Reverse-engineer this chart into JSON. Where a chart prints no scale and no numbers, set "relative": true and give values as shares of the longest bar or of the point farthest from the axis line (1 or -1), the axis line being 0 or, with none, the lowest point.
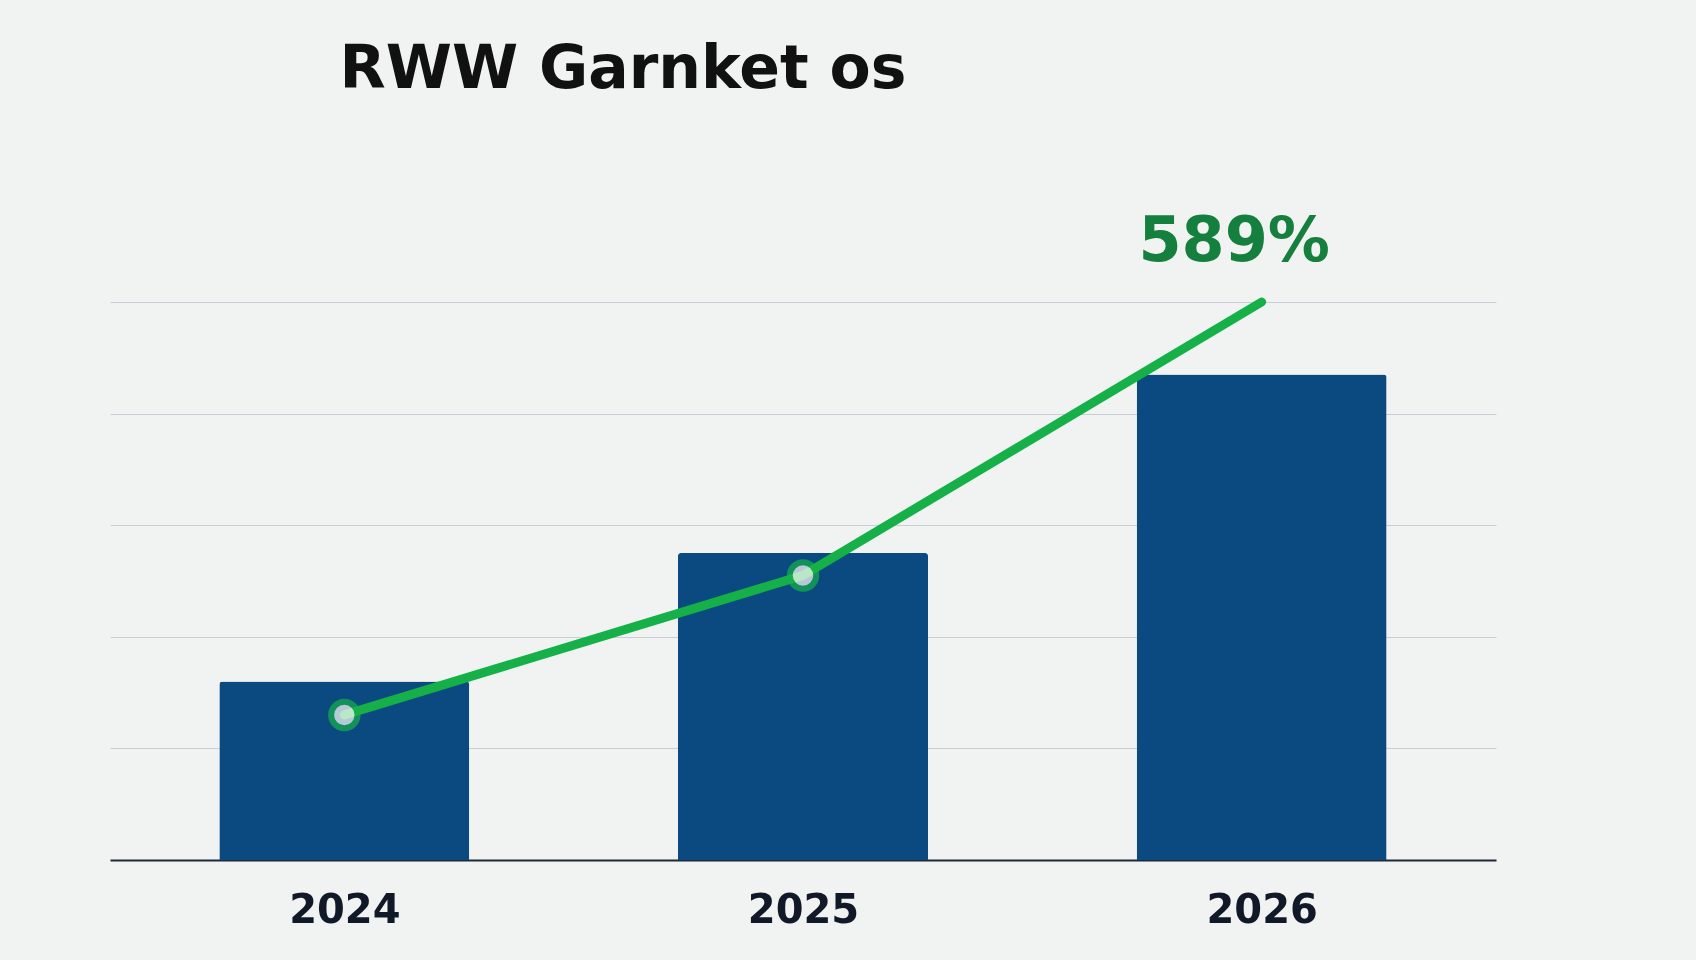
{
  "chart_data": {
    "type": "bar",
    "title": "RWW Garnket os",
    "categories": [
      "2024",
      "2025",
      "2026"
    ],
    "relative": true,
    "grid": "y",
    "series": [
      {
        "color": "#0a4a80",
        "values": [
          0.32,
          0.55,
          0.87
        ]
      },
      {
        "type": "line",
        "color": "#16b048",
        "values": [
          0.26,
          0.51,
          1.0
        ],
        "marker": "circle"
      }
    ],
    "annotations": [
      "589%"
    ]
  }
}
